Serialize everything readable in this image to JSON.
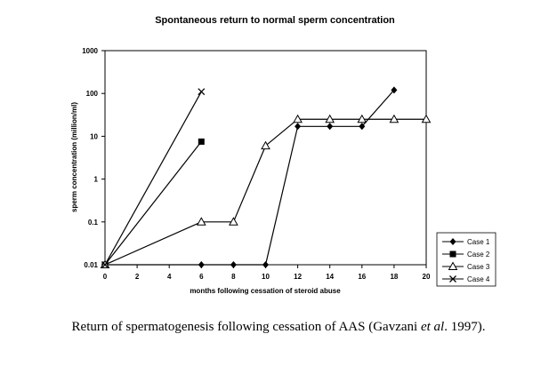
{
  "chart_data": {
    "type": "line",
    "title": "Spontaneous return to normal sperm concentration",
    "xlabel": "months following cessation of steroid abuse",
    "ylabel": "sperm concentration (million/ml)",
    "yscale": "log",
    "xlim": [
      0,
      20
    ],
    "ylim": [
      0.01,
      1000
    ],
    "x_ticks": [
      "0",
      "2",
      "4",
      "6",
      "8",
      "10",
      "12",
      "14",
      "16",
      "18",
      "20"
    ],
    "y_ticks": [
      "0.01",
      "0.1",
      "1",
      "10",
      "100",
      "1000"
    ],
    "grid": false,
    "legend_position": "bottom-right",
    "series": [
      {
        "name": "Case 1",
        "marker": "diamond",
        "x": [
          0,
          6,
          8,
          10,
          12,
          14,
          16,
          18
        ],
        "y": [
          0.01,
          0.01,
          0.01,
          0.01,
          17,
          17,
          17,
          120
        ]
      },
      {
        "name": "Case 2",
        "marker": "square",
        "x": [
          0,
          6
        ],
        "y": [
          0.01,
          7.5
        ]
      },
      {
        "name": "Case 3",
        "marker": "triangle",
        "x": [
          0,
          6,
          8,
          10,
          12,
          14,
          16,
          18,
          20
        ],
        "y": [
          0.01,
          0.1,
          0.1,
          6,
          25,
          25,
          25,
          25,
          25
        ]
      },
      {
        "name": "Case 4",
        "marker": "x",
        "x": [
          0,
          6
        ],
        "y": [
          0.01,
          110
        ]
      }
    ]
  },
  "caption": {
    "before": "Return of spermatogenesis following cessation of AAS (Gavzani ",
    "italic": "et al",
    "after": ". 1997)."
  }
}
